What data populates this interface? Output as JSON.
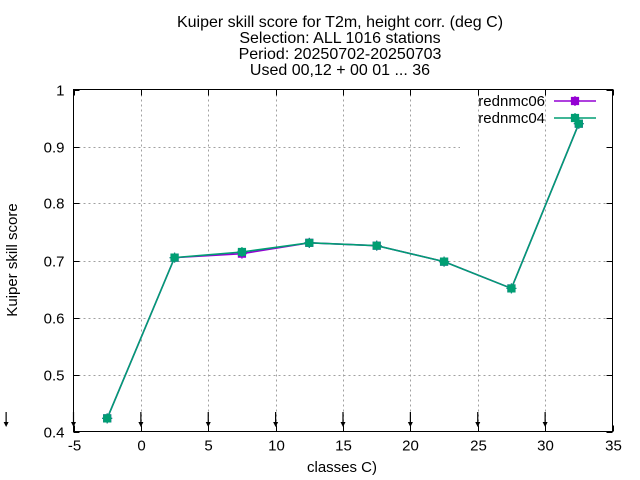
{
  "chart_data": {
    "type": "line",
    "title_lines": [
      "Kuiper skill score  for T2m, height corr. (deg C)",
      "Selection: ALL   1016 stations",
      "Period: 20250702-20250703",
      "Used 00,12 + 00 01 ... 36"
    ],
    "xlabel": "classes C)",
    "ylabel": "Kuiper skill score",
    "xlim": [
      -5,
      35
    ],
    "ylim": [
      0.4,
      1.0
    ],
    "x_ticks": [
      -5,
      0,
      5,
      10,
      15,
      20,
      25,
      30,
      35
    ],
    "x_tick_labels": [
      "-5",
      "0",
      "5",
      "10",
      "15",
      "20",
      "25",
      "30",
      "35"
    ],
    "y_ticks": [
      0.4,
      0.5,
      0.6,
      0.7,
      0.8,
      0.9,
      1.0
    ],
    "y_tick_labels": [
      "0.4",
      "0.5",
      "0.6",
      "0.7",
      "0.8",
      "0.9",
      "1"
    ],
    "grid": true,
    "legend_position": "top-right",
    "arrow_markers_x": [
      -10,
      -5,
      0,
      5,
      10,
      15,
      20,
      25,
      30
    ],
    "series": [
      {
        "name": "rednmc06",
        "color": "#9400d3",
        "x": [
          -2.5,
          2.5,
          7.5,
          12.5,
          17.5,
          22.5,
          27.5,
          32.5
        ],
        "y": [
          0.423,
          0.705,
          0.712,
          0.731,
          0.726,
          0.698,
          0.651,
          0.94
        ]
      },
      {
        "name": "rednmc04",
        "color": "#009e73",
        "x": [
          -2.5,
          2.5,
          7.5,
          12.5,
          17.5,
          22.5,
          27.5,
          32.5
        ],
        "y": [
          0.423,
          0.705,
          0.715,
          0.731,
          0.726,
          0.698,
          0.651,
          0.94
        ]
      }
    ]
  }
}
